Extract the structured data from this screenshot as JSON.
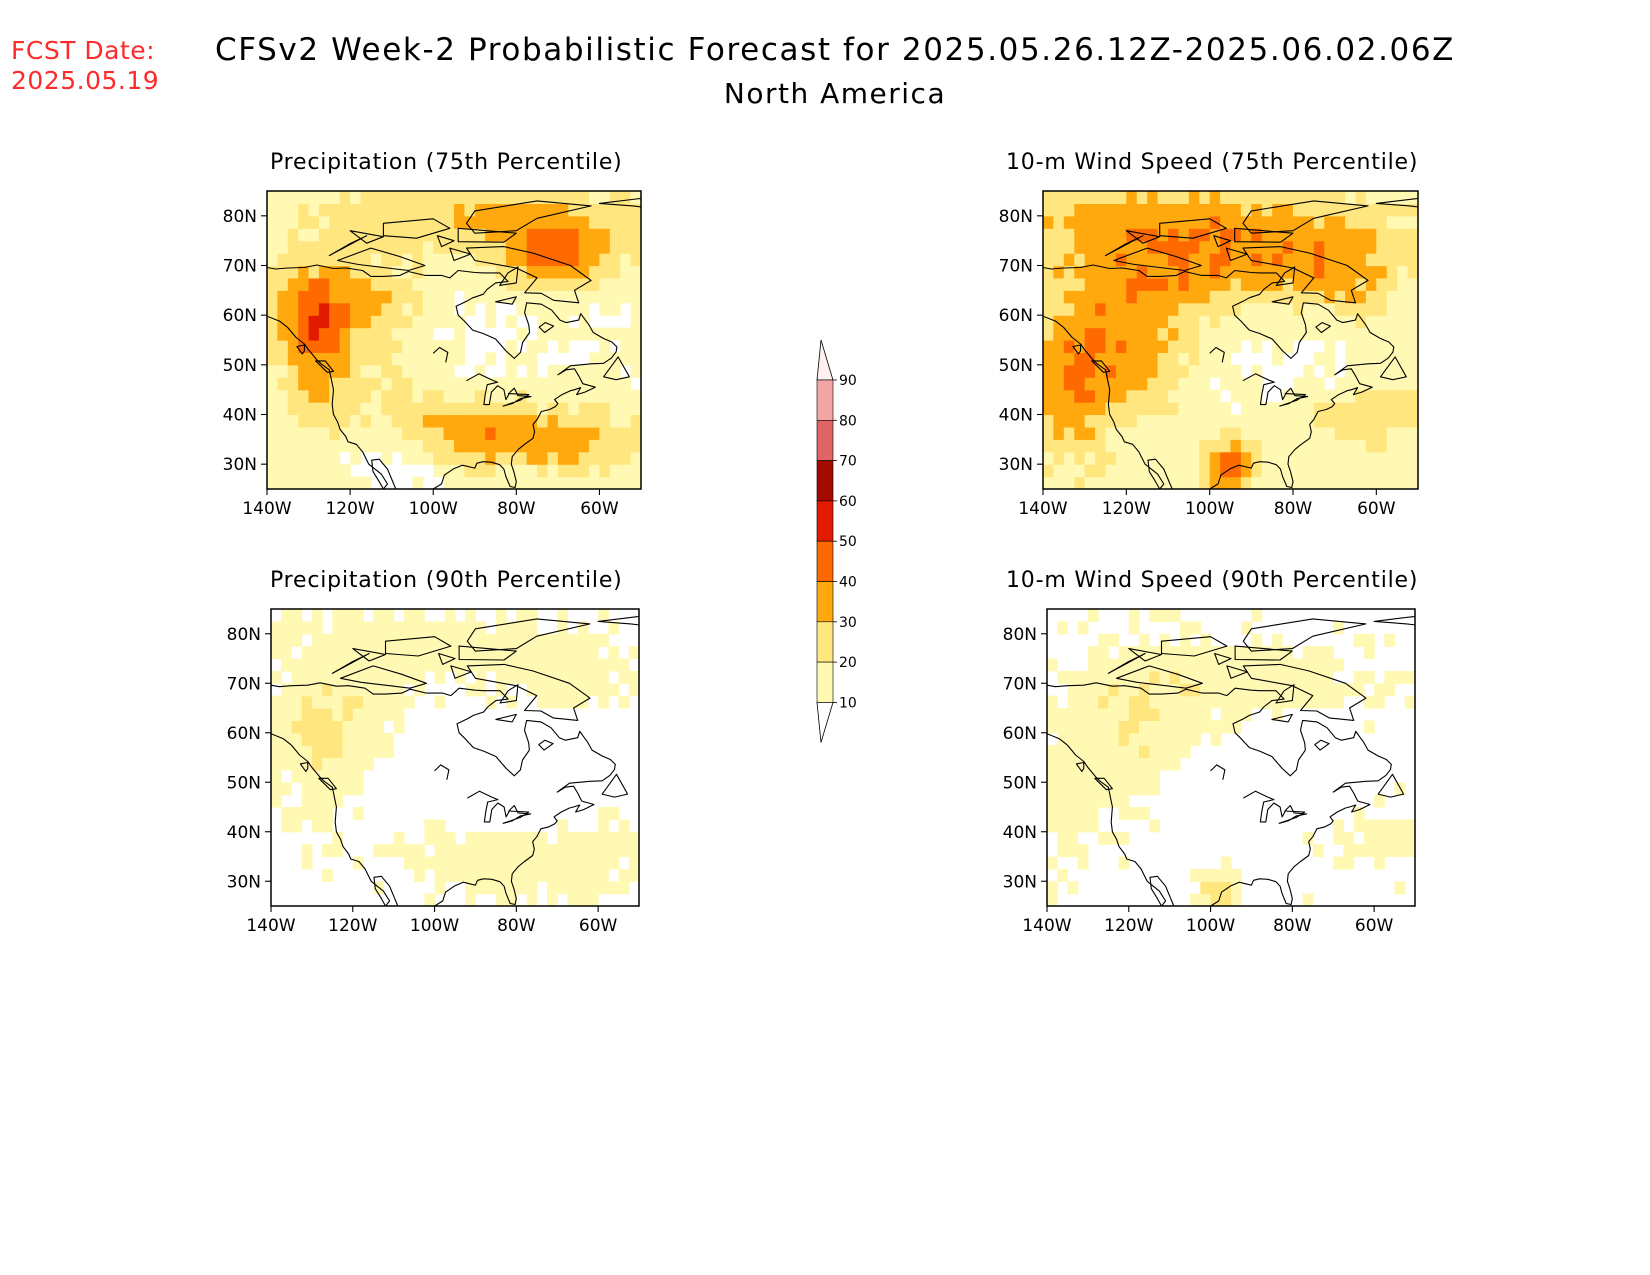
{
  "header": {
    "fcst_label": "FCST Date:",
    "fcst_date": "2025.05.19",
    "title": "CFSv2 Week-2 Probabilistic Forecast for 2025.05.26.12Z-2025.06.02.06Z",
    "subtitle": "North America"
  },
  "colors": {
    "lev10": "#fff9b4",
    "lev20": "#ffe67e",
    "lev30": "#ffa90e",
    "lev40": "#ff6a00",
    "lev50": "#e21a00",
    "lev60": "#a50a00",
    "lev70": "#e06666",
    "lev80": "#f3a5a5",
    "lev90": "#ffe3e3",
    "land_outline": "#000000"
  },
  "axes": {
    "lat_labels": [
      "80N",
      "70N",
      "60N",
      "50N",
      "40N",
      "30N"
    ],
    "lon_labels": [
      "140W",
      "120W",
      "100W",
      "80W",
      "60W"
    ]
  },
  "colorbar": {
    "levels": [
      "10",
      "20",
      "30",
      "40",
      "50",
      "60",
      "70",
      "80",
      "90"
    ]
  },
  "panels": [
    {
      "title": "Precipitation (75th Percentile)",
      "variable": "precipitation",
      "percentile": "75th"
    },
    {
      "title": "10-m Wind Speed (75th Percentile)",
      "variable": "wind",
      "percentile": "75th"
    },
    {
      "title": "Precipitation (90th Percentile)",
      "variable": "precipitation",
      "percentile": "90th"
    },
    {
      "title": "10-m Wind Speed (90th Percentile)",
      "variable": "wind",
      "percentile": "90th"
    }
  ]
}
